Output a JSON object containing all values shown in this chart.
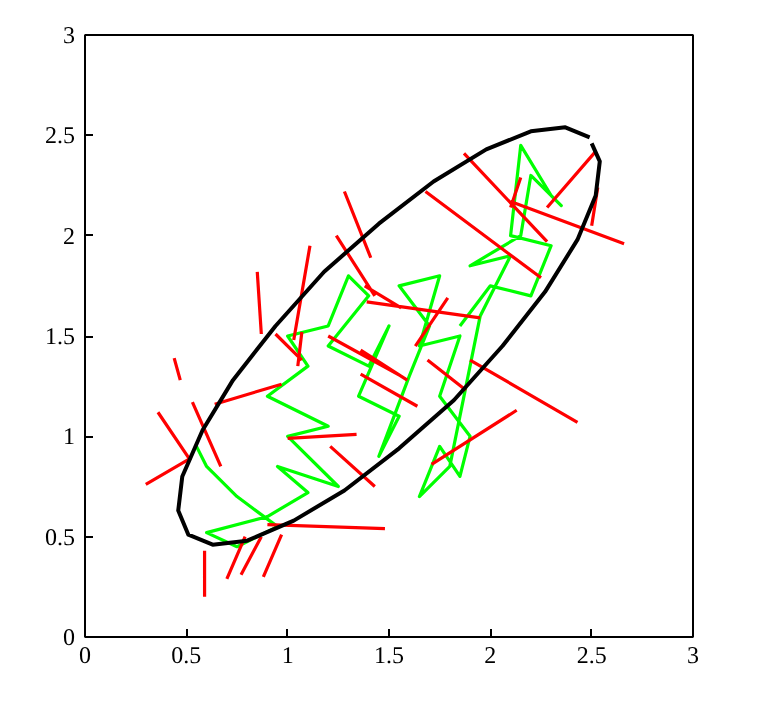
{
  "chart_data": {
    "type": "line",
    "xlim": [
      0,
      3
    ],
    "ylim": [
      0,
      3
    ],
    "xticks": [
      0,
      0.5,
      1,
      1.5,
      2,
      2.5,
      3
    ],
    "yticks": [
      0,
      0.5,
      1,
      1.5,
      2,
      2.5,
      3
    ],
    "grid": false,
    "marker": "none",
    "line_style": "solid",
    "series": [
      {
        "color": "#00ff00",
        "x": [
          0.55,
          0.6,
          0.75,
          0.95,
          0.75,
          0.6,
          0.9,
          1.1,
          0.95,
          1.25,
          1.0,
          1.2,
          0.9,
          1.1,
          1.0,
          1.2,
          1.3,
          1.4,
          1.2,
          1.4,
          1.5,
          1.35,
          1.55,
          1.45,
          1.6,
          1.7,
          1.55,
          1.75,
          1.65,
          1.85,
          1.75,
          1.9,
          1.85,
          1.75,
          1.65,
          1.8,
          1.95,
          2.1,
          1.9,
          2.15,
          2.2,
          2.35,
          2.3,
          2.15,
          2.1,
          2.3,
          2.2,
          2.0,
          1.85
        ],
        "values": [
          0.95,
          0.85,
          0.7,
          0.55,
          0.45,
          0.52,
          0.6,
          0.72,
          0.85,
          0.75,
          1.0,
          1.05,
          1.2,
          1.35,
          1.5,
          1.55,
          1.8,
          1.7,
          1.45,
          1.35,
          1.55,
          1.2,
          1.1,
          0.9,
          1.3,
          1.55,
          1.75,
          1.8,
          1.45,
          1.5,
          1.2,
          1.0,
          0.8,
          0.95,
          0.7,
          0.85,
          1.6,
          1.9,
          1.85,
          2.0,
          2.3,
          2.15,
          2.2,
          2.45,
          2.0,
          1.95,
          1.7,
          1.75,
          1.55
        ]
      },
      {
        "color": "#ff0000",
        "x": [
          0.3,
          0.52,
          null,
          0.36,
          0.52,
          null,
          0.53,
          0.67,
          null,
          0.59,
          0.59,
          null,
          0.7,
          0.79,
          null,
          0.77,
          0.87,
          null,
          0.88,
          0.97,
          null,
          0.64,
          0.97,
          null,
          1.0,
          1.34,
          null,
          1.21,
          1.43,
          null,
          0.9,
          1.48,
          null,
          0.44,
          0.47,
          null,
          0.85,
          0.87,
          null,
          1.11,
          1.03,
          null,
          0.94,
          1.07,
          null,
          1.07,
          1.05,
          null,
          1.28,
          1.41,
          null,
          1.24,
          1.43,
          null,
          1.2,
          1.56,
          null,
          1.38,
          1.56,
          null,
          1.87,
          2.28,
          null,
          1.68,
          2.25,
          null,
          2.52,
          2.28,
          null,
          2.1,
          2.66,
          null,
          2.53,
          2.5,
          null,
          2.15,
          2.1,
          null,
          1.39,
          1.95,
          null,
          1.79,
          1.63,
          null,
          1.36,
          1.59,
          null,
          1.9,
          2.43,
          null,
          1.71,
          2.13,
          null,
          1.36,
          1.64,
          null,
          1.69,
          1.88
        ],
        "values": [
          0.76,
          0.89,
          null,
          1.12,
          0.88,
          null,
          1.17,
          0.85,
          null,
          0.43,
          0.2,
          null,
          0.29,
          0.5,
          null,
          0.31,
          0.5,
          null,
          0.3,
          0.51,
          null,
          1.16,
          1.26,
          null,
          0.99,
          1.01,
          null,
          0.95,
          0.75,
          null,
          0.56,
          0.54,
          null,
          1.39,
          1.28,
          null,
          1.82,
          1.51,
          null,
          1.95,
          1.48,
          null,
          1.51,
          1.38,
          null,
          1.52,
          1.35,
          null,
          2.22,
          1.89,
          null,
          2.0,
          1.7,
          null,
          1.5,
          1.3,
          null,
          1.75,
          1.64,
          null,
          2.41,
          1.97,
          null,
          2.22,
          1.79,
          null,
          2.42,
          2.14,
          null,
          2.17,
          1.96,
          null,
          2.24,
          2.05,
          null,
          2.29,
          2.14,
          null,
          1.67,
          1.59,
          null,
          1.69,
          1.45,
          null,
          1.43,
          1.28,
          null,
          1.38,
          1.07,
          null,
          0.86,
          1.13,
          null,
          1.31,
          1.15,
          null,
          1.38,
          1.23
        ]
      },
      {
        "color": "#000000",
        "x": [
          2.49,
          2.37,
          2.2,
          1.98,
          1.72,
          1.45,
          1.18,
          0.94,
          0.73,
          0.58,
          0.48,
          0.46,
          0.51,
          0.63,
          0.8,
          1.03,
          1.28,
          1.55,
          1.82,
          2.06,
          2.27,
          2.43,
          2.52,
          2.54,
          2.5
        ],
        "values": [
          2.49,
          2.54,
          2.52,
          2.43,
          2.27,
          2.06,
          1.82,
          1.55,
          1.28,
          1.03,
          0.8,
          0.63,
          0.51,
          0.46,
          0.48,
          0.58,
          0.73,
          0.94,
          1.18,
          1.45,
          1.72,
          1.98,
          2.2,
          2.37,
          2.46
        ]
      }
    ]
  }
}
